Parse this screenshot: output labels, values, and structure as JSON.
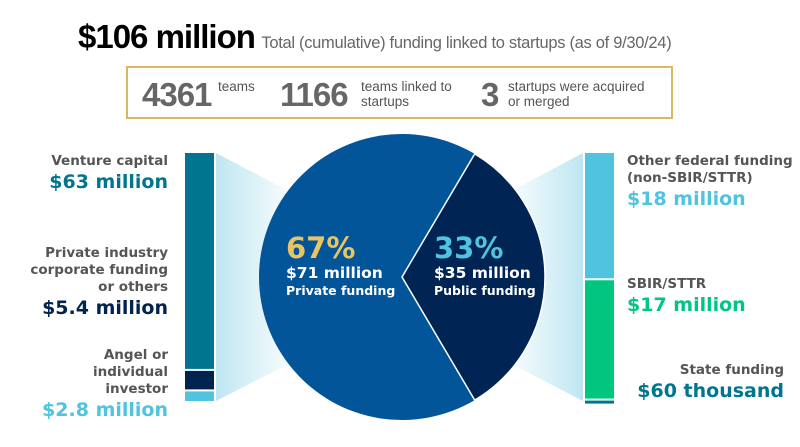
{
  "header": {
    "total": "$106 million",
    "description": "Total (cumulative) funding linked to startups (as of 9/30/24)"
  },
  "stats": [
    {
      "value": "4361",
      "label": "teams"
    },
    {
      "value": "1166",
      "label": "teams linked to startups"
    },
    {
      "value": "3",
      "label": "startups were acquired or merged"
    }
  ],
  "colors": {
    "private_pie": "#03559a",
    "public_pie": "#002554",
    "venture": "#007590",
    "corporate": "#00234f",
    "angel": "#4fc3df",
    "other_federal": "#4fc3df",
    "sbir": "#00c67f",
    "state": "#007590",
    "highlight_yellow": "#e8c465",
    "highlight_cyan": "#4fc3df",
    "box_border": "#d9b862"
  },
  "chart_data": [
    {
      "type": "pie",
      "slices": [
        {
          "name": "Private funding",
          "percent": "67%",
          "amount": "$71 million",
          "value": 71
        },
        {
          "name": "Public funding",
          "percent": "33%",
          "amount": "$35 million",
          "value": 35
        }
      ]
    },
    {
      "type": "bar",
      "stacked": true,
      "breakdown_of": "Private funding",
      "segments": [
        {
          "name": "Venture capital",
          "amount": "$63 million",
          "value": 63
        },
        {
          "name": "Private industry corporate funding or others",
          "amount": "$5.4 million",
          "value": 5.4
        },
        {
          "name": "Angel or individual investor",
          "amount": "$2.8 million",
          "value": 2.8
        }
      ]
    },
    {
      "type": "bar",
      "stacked": true,
      "breakdown_of": "Public funding",
      "segments": [
        {
          "name": "Other federal funding (non-SBIR/STTR)",
          "amount": "$18 million",
          "value": 18
        },
        {
          "name": "SBIR/STTR",
          "amount": "$17 million",
          "value": 17
        },
        {
          "name": "State funding",
          "amount": "$60 thousand",
          "value": 0.06
        }
      ]
    }
  ]
}
